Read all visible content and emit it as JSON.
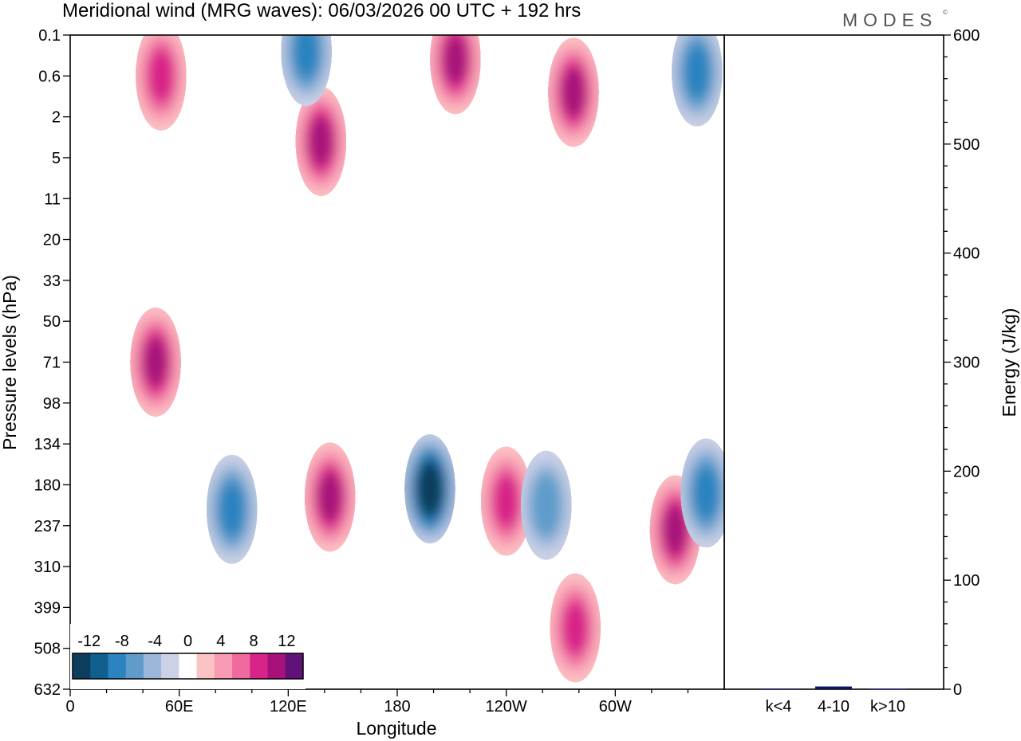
{
  "chart_data": [
    {
      "type": "heatmap",
      "title": "Meridional wind (MRG waves):  06/03/2026  00 UTC  + 192 hrs",
      "xlabel": "Longitude",
      "ylabel": "Pressure levels (hPa)",
      "x_ticks": [
        "0",
        "60E",
        "120E",
        "180",
        "120W",
        "60W"
      ],
      "x_tick_values": [
        0,
        60,
        120,
        180,
        240,
        300
      ],
      "xlim": [
        0,
        360
      ],
      "y_ticks": [
        "0.1",
        "0.6",
        "2",
        "5",
        "11",
        "20",
        "33",
        "50",
        "71",
        "98",
        "134",
        "180",
        "237",
        "310",
        "399",
        "508",
        "632"
      ],
      "colorbar": {
        "labels": [
          "-12",
          "-8",
          "-4",
          "0",
          "4",
          "8",
          "12"
        ],
        "label_values": [
          -12,
          -8,
          -4,
          0,
          4,
          8,
          12
        ],
        "bins": [
          -14,
          -12,
          -10,
          -8,
          -6,
          -4,
          -2,
          2,
          4,
          6,
          8,
          10,
          12,
          14
        ],
        "colors": [
          "#0d3d5c",
          "#105f8f",
          "#2b83bf",
          "#5f9ccb",
          "#9cb7d9",
          "#ccd1e6",
          "#ffffff",
          "#fbc3c3",
          "#f89ab4",
          "#ee6a9f",
          "#d82488",
          "#a6127a",
          "#601278"
        ]
      },
      "contour_features": [
        {
          "lon": 47,
          "level": 8,
          "value": 9
        },
        {
          "lon": 89,
          "level": 11.6,
          "value": -8
        },
        {
          "lon": 143,
          "level": 11.3,
          "value": 10
        },
        {
          "lon": 198,
          "level": 11.1,
          "value": -14
        },
        {
          "lon": 240,
          "level": 11.4,
          "value": 7
        },
        {
          "lon": 262,
          "level": 11.5,
          "value": -6
        },
        {
          "lon": 278,
          "level": 14.5,
          "value": 7
        },
        {
          "lon": 333,
          "level": 12.1,
          "value": 9
        },
        {
          "lon": 350,
          "level": 11.2,
          "value": -7
        },
        {
          "lon": 50,
          "level": 1,
          "value": 7
        },
        {
          "lon": 138,
          "level": 2.6,
          "value": 10
        },
        {
          "lon": 130,
          "level": 0.4,
          "value": -8
        },
        {
          "lon": 212,
          "level": 0.6,
          "value": 9
        },
        {
          "lon": 277,
          "level": 1.4,
          "value": 9
        },
        {
          "lon": 345,
          "level": 0.9,
          "value": -8
        }
      ]
    },
    {
      "type": "bar",
      "ylabel": "Energy (J/kg)",
      "categories": [
        "k<4",
        "4-10",
        "k>10"
      ],
      "values": [
        0.5,
        2.5,
        0.3
      ],
      "ylim": [
        0,
        600
      ],
      "y_ticks": [
        "0",
        "100",
        "200",
        "300",
        "400",
        "500",
        "600"
      ],
      "y_tick_values": [
        0,
        100,
        200,
        300,
        400,
        500,
        600
      ],
      "bar_color": "#101070"
    }
  ],
  "logo": "MODES",
  "logo_mark": "©"
}
